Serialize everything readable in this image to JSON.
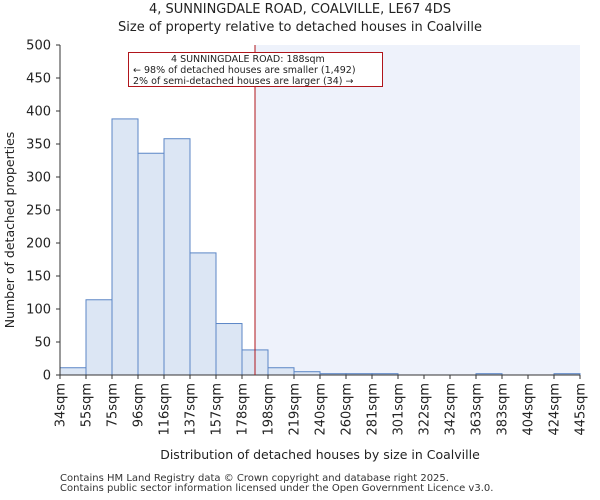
{
  "chart_data": {
    "type": "histogram",
    "title": "4, SUNNINGDALE ROAD, COALVILLE, LE67 4DS",
    "subtitle": "Size of property relative to detached houses in Coalville",
    "xlabel": "Distribution of detached houses by size in Coalville",
    "ylabel": "Number of detached properties",
    "ylim": [
      0,
      500
    ],
    "yticks": [
      0,
      50,
      100,
      150,
      200,
      250,
      300,
      350,
      400,
      450,
      500
    ],
    "categories": [
      "34sqm",
      "55sqm",
      "75sqm",
      "96sqm",
      "116sqm",
      "137sqm",
      "157sqm",
      "178sqm",
      "198sqm",
      "219sqm",
      "240sqm",
      "260sqm",
      "281sqm",
      "301sqm",
      "322sqm",
      "342sqm",
      "363sqm",
      "383sqm",
      "404sqm",
      "424sqm",
      "445sqm"
    ],
    "values": [
      11,
      114,
      388,
      336,
      358,
      185,
      78,
      38,
      11,
      5,
      2,
      2,
      2,
      0,
      0,
      0,
      2,
      0,
      0,
      2
    ],
    "marker": {
      "value_sqm": 188,
      "label": "4 SUNNINGDALE ROAD: 188sqm"
    },
    "annotation": {
      "line1": "4 SUNNINGDALE ROAD: 188sqm",
      "line2": "← 98% of detached houses are smaller (1,492)",
      "line3": "2% of semi-detached houses are larger (34) →"
    },
    "colors": {
      "bar_fill": "#dce6f4",
      "bar_edge": "#5b86c6",
      "marker": "#b0151b",
      "shade": "#eef2fb"
    }
  },
  "footer": {
    "line1": "Contains HM Land Registry data © Crown copyright and database right 2025.",
    "line2": "Contains public sector information licensed under the Open Government Licence v3.0."
  }
}
